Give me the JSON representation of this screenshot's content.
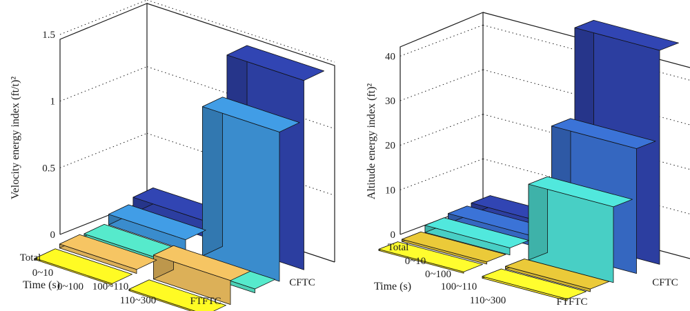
{
  "chart_data": [
    {
      "type": "bar3d",
      "ylabel": "Velocity energy index (ft/t)²",
      "xlabel": "Time (s)",
      "zlim": [
        0,
        1.5
      ],
      "zticks": [
        "0",
        "0.5",
        "1",
        "1.5"
      ],
      "rows": [
        "Total",
        "0~10",
        "0~100",
        "100~110",
        "110~300"
      ],
      "cols": [
        "FTFTC",
        "CFTC"
      ],
      "colors": [
        "#2c3ea0",
        "#3a8ccd",
        "#4dd1b6",
        "#dcb058",
        "#f6e020"
      ],
      "values": {
        "FTFTC": [
          0.12,
          0.08,
          0.02,
          0.03,
          0.01
        ],
        "CFTC": [
          1.42,
          1.12,
          0.03,
          0.18,
          0.01
        ]
      }
    },
    {
      "type": "bar3d",
      "ylabel": "Altitude energy index (ft)²",
      "xlabel": "Time (s)",
      "zlim": [
        0,
        45
      ],
      "zticks": [
        "0",
        "10",
        "20",
        "30",
        "40"
      ],
      "rows": [
        "Total",
        "0~10",
        "0~100",
        "100~110",
        "110~300"
      ],
      "cols": [
        "FTFTC",
        "CFTC"
      ],
      "colors": [
        "#2c3ea0",
        "#3567c0",
        "#48cfc5",
        "#d2b433",
        "#f4e229"
      ],
      "values": {
        "FTFTC": [
          2.5,
          2.2,
          1.6,
          0.5,
          0.3
        ],
        "CFTC": [
          48,
          28,
          17,
          0.6,
          0.4
        ]
      }
    }
  ]
}
